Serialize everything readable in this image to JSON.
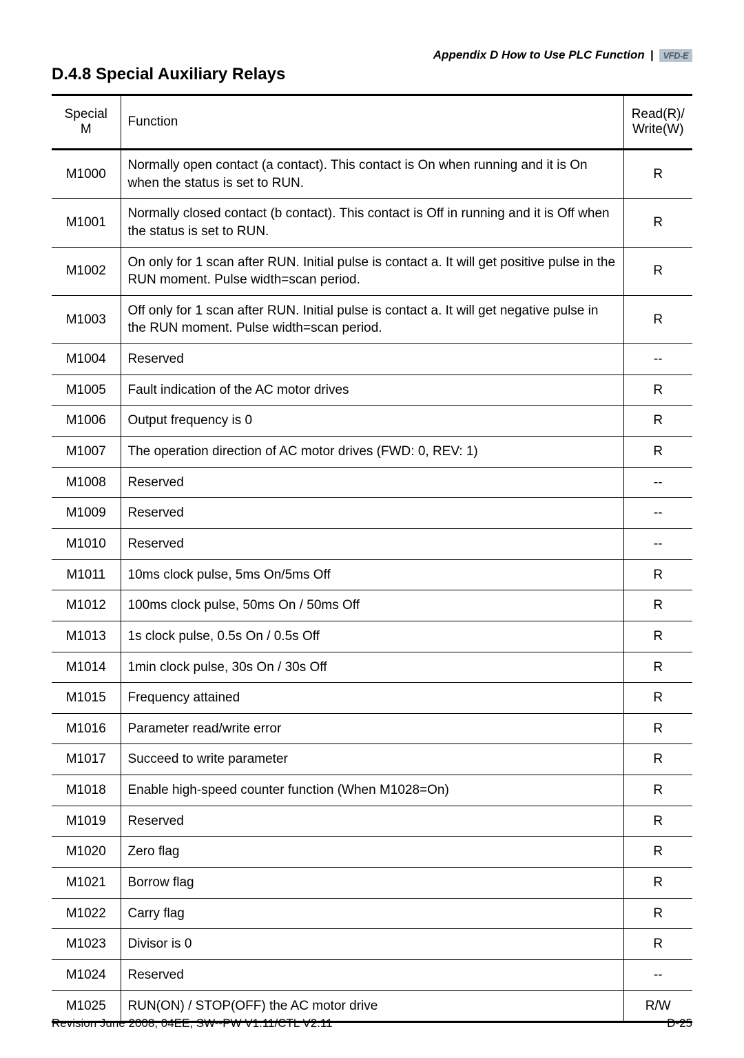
{
  "header": {
    "appendix_text": "Appendix D How to Use PLC Function",
    "logo_text": "VFD-E"
  },
  "section_title": "D.4.8 Special Auxiliary Relays",
  "table": {
    "columns": [
      "Special M",
      "Function",
      "Read(R)/ Write(W)"
    ],
    "rows": [
      [
        "M1000",
        "Normally open contact (a contact). This contact is On when running and it is On when the status is set to RUN.",
        "R"
      ],
      [
        "M1001",
        "Normally closed contact (b contact). This contact is Off in running and it is Off when the status is set to RUN.",
        "R"
      ],
      [
        "M1002",
        "On only for 1 scan after RUN. Initial pulse is contact a. It will get positive pulse in the RUN moment. Pulse width=scan period.",
        "R"
      ],
      [
        "M1003",
        "Off only for 1 scan after RUN. Initial pulse is contact a. It will get negative pulse in the RUN moment. Pulse width=scan period.",
        "R"
      ],
      [
        "M1004",
        "Reserved",
        "--"
      ],
      [
        "M1005",
        "Fault indication of the AC motor drives",
        "R"
      ],
      [
        "M1006",
        "Output frequency is 0",
        "R"
      ],
      [
        "M1007",
        "The operation direction of AC motor drives (FWD: 0, REV: 1)",
        "R"
      ],
      [
        "M1008",
        "Reserved",
        "--"
      ],
      [
        "M1009",
        "Reserved",
        "--"
      ],
      [
        "M1010",
        "Reserved",
        "--"
      ],
      [
        "M1011",
        "10ms clock pulse, 5ms On/5ms Off",
        "R"
      ],
      [
        "M1012",
        "100ms clock pulse, 50ms On / 50ms Off",
        "R"
      ],
      [
        "M1013",
        "1s clock pulse, 0.5s On / 0.5s Off",
        "R"
      ],
      [
        "M1014",
        "1min clock pulse, 30s On / 30s Off",
        "R"
      ],
      [
        "M1015",
        "Frequency attained",
        "R"
      ],
      [
        "M1016",
        "Parameter read/write error",
        "R"
      ],
      [
        "M1017",
        "Succeed to write parameter",
        "R"
      ],
      [
        "M1018",
        "Enable high-speed counter function (When M1028=On)",
        "R"
      ],
      [
        "M1019",
        "Reserved",
        "R"
      ],
      [
        "M1020",
        "Zero flag",
        "R"
      ],
      [
        "M1021",
        "Borrow flag",
        "R"
      ],
      [
        "M1022",
        "Carry flag",
        "R"
      ],
      [
        "M1023",
        "Divisor is 0",
        "R"
      ],
      [
        "M1024",
        "Reserved",
        "--"
      ],
      [
        "M1025",
        "RUN(ON) / STOP(OFF) the AC motor drive",
        "R/W"
      ]
    ]
  },
  "footer": {
    "revision": "Revision June 2008, 04EE, SW--PW V1.11/CTL V2.11",
    "page": "D-25"
  }
}
